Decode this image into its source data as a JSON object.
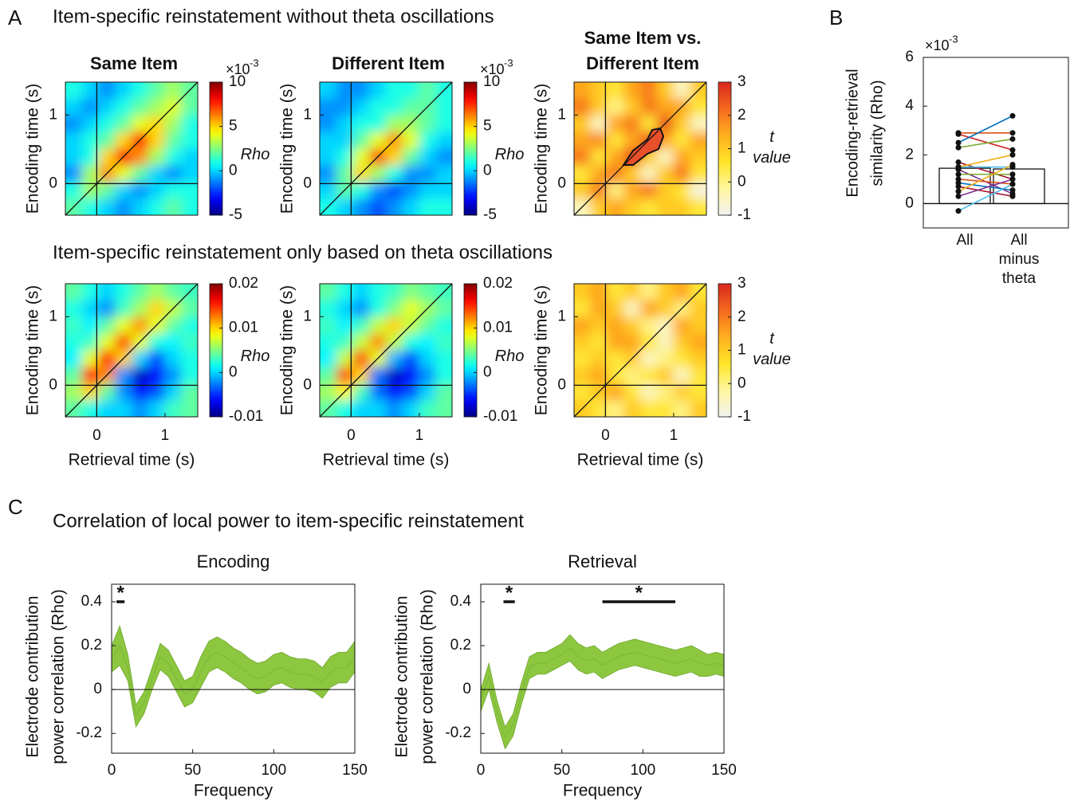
{
  "figure": {
    "panel_labels": [
      "A",
      "B",
      "C"
    ],
    "headings": [
      "Item-specific reinstatement without theta oscillations",
      "Item-specific reinstatement only based on theta oscillations",
      "Correlation of local power to item-specific reinstatement"
    ]
  },
  "chart_data": [
    {
      "type": "heatmap",
      "title": [
        "Same Item"
      ],
      "ylabel": "Encoding time (s)",
      "xlim": [
        -0.46,
        1.48
      ],
      "ylim": [
        -0.46,
        1.48
      ],
      "yticks": [
        0,
        1
      ],
      "colormap": "jet",
      "clim": [
        -5,
        10
      ],
      "cbar_ticks": [
        -5,
        0,
        5,
        10
      ],
      "cbar_label": [
        "Rho"
      ],
      "multiplier": {
        "base": "×10",
        "exp": "-3"
      },
      "z": [
        [
          1,
          0,
          -1,
          0,
          1,
          2,
          3,
          2
        ],
        [
          0,
          -1,
          0,
          1,
          2,
          3,
          4,
          2
        ],
        [
          -1,
          0,
          1,
          2,
          4,
          5,
          3,
          1
        ],
        [
          0,
          1,
          2,
          5,
          8,
          5,
          2,
          1
        ],
        [
          0,
          1,
          5,
          8,
          6,
          3,
          1,
          0
        ],
        [
          -1,
          3,
          6,
          4,
          2,
          0,
          -1,
          0
        ],
        [
          1,
          3,
          2,
          0,
          -1,
          0,
          1,
          1
        ],
        [
          2,
          1,
          0,
          -1,
          0,
          1,
          2,
          1
        ]
      ]
    },
    {
      "type": "heatmap",
      "title": [
        "Different Item"
      ],
      "ylabel": "Encoding time (s)",
      "xlim": [
        -0.46,
        1.48
      ],
      "ylim": [
        -0.46,
        1.48
      ],
      "yticks": [
        0,
        1
      ],
      "colormap": "jet",
      "clim": [
        -5,
        10
      ],
      "cbar_ticks": [
        -5,
        0,
        5,
        10
      ],
      "cbar_label": [
        "Rho"
      ],
      "multiplier": {
        "base": "×10",
        "exp": "-3"
      },
      "z": [
        [
          0,
          -1,
          -1,
          0,
          1,
          1,
          2,
          1
        ],
        [
          -1,
          -1,
          0,
          1,
          1,
          2,
          2,
          1
        ],
        [
          -1,
          0,
          1,
          1,
          3,
          3,
          2,
          1
        ],
        [
          0,
          0,
          2,
          4,
          6,
          4,
          1,
          0
        ],
        [
          0,
          1,
          4,
          7,
          5,
          2,
          0,
          -1
        ],
        [
          -1,
          2,
          5,
          3,
          1,
          -1,
          -1,
          0
        ],
        [
          0,
          2,
          1,
          -1,
          -2,
          -1,
          0,
          0
        ],
        [
          1,
          0,
          -1,
          -2,
          -1,
          0,
          1,
          1
        ]
      ]
    },
    {
      "type": "heatmap",
      "title": [
        "Same Item vs.",
        "Different Item"
      ],
      "ylabel": "Encoding time (s)",
      "xlim": [
        -0.46,
        1.48
      ],
      "ylim": [
        -0.46,
        1.48
      ],
      "yticks": [
        0,
        1
      ],
      "colormap": "tmap",
      "clim": [
        -1,
        3
      ],
      "cbar_ticks": [
        -1,
        0,
        1,
        2,
        3
      ],
      "cbar_label": [
        "t",
        "value"
      ],
      "z": [
        [
          1.5,
          1,
          0.5,
          1.5,
          2,
          1,
          -0.5,
          1
        ],
        [
          2,
          1,
          0,
          1,
          2,
          1.5,
          1.5,
          0.5
        ],
        [
          1,
          -0.5,
          1.5,
          2,
          0.5,
          2.5,
          1,
          -0.5
        ],
        [
          1.5,
          1.8,
          0.5,
          1.5,
          2.5,
          1.5,
          0.5,
          1.5
        ],
        [
          2,
          0.5,
          1.5,
          2.5,
          1,
          -0.5,
          1.5,
          1
        ],
        [
          0.5,
          1.5,
          2,
          1,
          -0.5,
          1,
          2,
          0.5
        ],
        [
          1,
          2,
          0,
          1.5,
          2,
          1,
          0.5,
          -0.8
        ],
        [
          -0.5,
          1,
          1.5,
          1,
          0.5,
          1,
          1,
          0.5
        ]
      ]
    },
    {
      "type": "heatmap",
      "ylabel": "Encoding time (s)",
      "xlabel": "Retrieval time (s)",
      "xlim": [
        -0.46,
        1.48
      ],
      "ylim": [
        -0.46,
        1.48
      ],
      "xticks": [
        0,
        1
      ],
      "yticks": [
        0,
        1
      ],
      "colormap": "jet",
      "clim": [
        -0.01,
        0.02
      ],
      "cbar_ticks": [
        -0.01,
        0,
        0.01,
        0.02
      ],
      "cbar_label": [
        "Rho"
      ],
      "z": [
        [
          0.004,
          0.002,
          0,
          0.002,
          0.004,
          0.006,
          0.004,
          0.003
        ],
        [
          0.002,
          0,
          -0.002,
          0.003,
          0.006,
          0.01,
          0.007,
          0.004
        ],
        [
          0.003,
          0.001,
          0.004,
          0.008,
          0.012,
          0.008,
          0.004,
          0.002
        ],
        [
          0.002,
          0.003,
          0.008,
          0.014,
          0.008,
          0.002,
          0.001,
          0.003
        ],
        [
          0.001,
          0.008,
          0.016,
          0.01,
          0,
          -0.004,
          0,
          0.002
        ],
        [
          0.004,
          0.016,
          0.012,
          -0.002,
          -0.008,
          -0.006,
          -0.002,
          0.002
        ],
        [
          0.006,
          0.01,
          0.004,
          -0.002,
          -0.006,
          -0.004,
          0,
          0.004
        ],
        [
          0.004,
          0.002,
          0,
          0,
          -0.002,
          0,
          0.003,
          0.004
        ]
      ]
    },
    {
      "type": "heatmap",
      "ylabel": "Encoding time (s)",
      "xlabel": "Retrieval time (s)",
      "xlim": [
        -0.46,
        1.48
      ],
      "ylim": [
        -0.46,
        1.48
      ],
      "xticks": [
        0,
        1
      ],
      "yticks": [
        0,
        1
      ],
      "colormap": "jet",
      "clim": [
        -0.01,
        0.02
      ],
      "cbar_ticks": [
        -0.01,
        0,
        0.01,
        0.02
      ],
      "cbar_label": [
        "Rho"
      ],
      "z": [
        [
          0.004,
          0.002,
          0,
          0.002,
          0.003,
          0.005,
          0.004,
          0.003
        ],
        [
          0.002,
          0,
          -0.002,
          0.002,
          0.005,
          0.008,
          0.006,
          0.004
        ],
        [
          0.003,
          0.001,
          0.003,
          0.007,
          0.01,
          0.007,
          0.004,
          0.002
        ],
        [
          0.002,
          0.003,
          0.007,
          0.012,
          0.007,
          0.002,
          0.001,
          0.003
        ],
        [
          0.001,
          0.007,
          0.014,
          0.008,
          -0.001,
          -0.004,
          0,
          0.002
        ],
        [
          0.004,
          0.014,
          0.01,
          -0.003,
          -0.008,
          -0.006,
          -0.002,
          0.002
        ],
        [
          0.006,
          0.009,
          0.003,
          -0.003,
          -0.006,
          -0.004,
          0,
          0.004
        ],
        [
          0.004,
          0.002,
          0,
          0,
          -0.002,
          0,
          0.003,
          0.004
        ]
      ]
    },
    {
      "type": "heatmap",
      "ylabel": "Encoding time (s)",
      "xlabel": "Retrieval time (s)",
      "xlim": [
        -0.46,
        1.48
      ],
      "ylim": [
        -0.46,
        1.48
      ],
      "xticks": [
        0,
        1
      ],
      "yticks": [
        0,
        1
      ],
      "colormap": "tmap",
      "clim": [
        -1,
        3
      ],
      "cbar_ticks": [
        -1,
        0,
        1,
        2,
        3
      ],
      "cbar_label": [
        "t",
        "value"
      ],
      "z": [
        [
          1,
          1.5,
          0.5,
          1,
          0,
          1,
          1.5,
          0.5
        ],
        [
          0.5,
          1.5,
          1,
          -0.5,
          1.5,
          1,
          0,
          1
        ],
        [
          1.5,
          1,
          1.5,
          1,
          0,
          -0.5,
          1.5,
          1
        ],
        [
          1,
          0.5,
          1.5,
          1.5,
          0.5,
          -0.5,
          1,
          1.5
        ],
        [
          0.5,
          1,
          0.5,
          1,
          -0.5,
          0,
          0.5,
          1
        ],
        [
          1,
          1.5,
          0.5,
          0,
          0.5,
          1,
          -0.5,
          0.5
        ],
        [
          0.5,
          1,
          1.5,
          0.5,
          -0.5,
          0,
          1,
          0.5
        ],
        [
          1,
          0.5,
          0,
          1,
          0.5,
          0.5,
          0,
          1
        ]
      ]
    },
    {
      "type": "bar",
      "ylabel": [
        "Encoding-retrieval",
        "similarity (Rho)"
      ],
      "multiplier": {
        "base": "×10",
        "exp": "-3"
      },
      "categories": [
        "All",
        "All minus theta"
      ],
      "values": [
        1.45,
        1.42
      ],
      "color": "#ffffff",
      "ylim": [
        -1,
        6
      ],
      "yticks": [
        0,
        2,
        4,
        6
      ],
      "series": [
        {
          "color": "#d95319",
          "values": [
            2.9,
            2.9
          ]
        },
        {
          "color": "#d62728",
          "values": [
            2.85,
            2.2
          ]
        },
        {
          "color": "#0072bd",
          "values": [
            2.5,
            3.6
          ]
        },
        {
          "color": "#77ac30",
          "values": [
            2.3,
            2.65
          ]
        },
        {
          "color": "#a2142f",
          "values": [
            1.7,
            1.0
          ]
        },
        {
          "color": "#4dbeee",
          "values": [
            1.5,
            1.5
          ]
        },
        {
          "color": "#edb120",
          "values": [
            1.5,
            2.0
          ]
        },
        {
          "color": "#7e2f8e",
          "values": [
            1.4,
            0.4
          ]
        },
        {
          "color": "#77ac30",
          "values": [
            1.2,
            1.2
          ]
        },
        {
          "color": "#d95319",
          "values": [
            1.0,
            0.8
          ]
        },
        {
          "color": "#0072bd",
          "values": [
            0.85,
            0.55
          ]
        },
        {
          "color": "#a2142f",
          "values": [
            0.7,
            0.3
          ]
        },
        {
          "color": "#edb120",
          "values": [
            0.5,
            1.6
          ]
        },
        {
          "color": "#7e2f8e",
          "values": [
            0.3,
            1.0
          ]
        },
        {
          "color": "#4dbeee",
          "values": [
            -0.3,
            0.8
          ]
        }
      ]
    },
    {
      "type": "band",
      "title": "Encoding",
      "xlabel": "Frequency",
      "ylabel": [
        "Electrode contribution",
        "power correlation (Rho)"
      ],
      "color": "#8dc63f",
      "x": [
        0,
        5,
        10,
        15,
        20,
        25,
        30,
        35,
        40,
        45,
        50,
        55,
        60,
        65,
        70,
        75,
        80,
        85,
        90,
        95,
        100,
        105,
        110,
        115,
        120,
        125,
        130,
        135,
        140,
        145,
        150
      ],
      "values": [
        0.14,
        0.2,
        0.1,
        -0.12,
        -0.06,
        0.05,
        0.15,
        0.12,
        0.05,
        -0.02,
        0.0,
        0.08,
        0.15,
        0.17,
        0.15,
        0.12,
        0.1,
        0.07,
        0.05,
        0.06,
        0.09,
        0.1,
        0.08,
        0.07,
        0.07,
        0.06,
        0.03,
        0.08,
        0.1,
        0.1,
        0.15
      ],
      "errors": [
        0.06,
        0.09,
        0.06,
        0.05,
        0.05,
        0.05,
        0.06,
        0.06,
        0.06,
        0.06,
        0.06,
        0.07,
        0.07,
        0.07,
        0.07,
        0.07,
        0.07,
        0.07,
        0.07,
        0.07,
        0.07,
        0.07,
        0.07,
        0.07,
        0.07,
        0.07,
        0.07,
        0.07,
        0.07,
        0.07,
        0.07
      ],
      "xlim": [
        0,
        150
      ],
      "ylim": [
        -0.29,
        0.48
      ],
      "xticks": [
        0,
        50,
        100,
        150
      ],
      "yticks": [
        -0.2,
        0,
        0.2,
        0.4
      ],
      "significance": [
        {
          "range": [
            3,
            8
          ],
          "label": "*"
        }
      ]
    },
    {
      "type": "band",
      "title": "Retrieval",
      "xlabel": "Frequency",
      "ylabel": [
        "Electrode contribution",
        "power correlation (Rho)"
      ],
      "color": "#8dc63f",
      "x": [
        0,
        5,
        10,
        15,
        20,
        25,
        30,
        35,
        40,
        45,
        50,
        55,
        60,
        65,
        70,
        75,
        80,
        85,
        90,
        95,
        100,
        105,
        110,
        115,
        120,
        125,
        130,
        135,
        140,
        145,
        150
      ],
      "values": [
        -0.05,
        0.06,
        -0.1,
        -0.22,
        -0.16,
        -0.02,
        0.1,
        0.12,
        0.12,
        0.14,
        0.16,
        0.19,
        0.15,
        0.13,
        0.14,
        0.11,
        0.13,
        0.15,
        0.16,
        0.17,
        0.16,
        0.15,
        0.14,
        0.13,
        0.12,
        0.13,
        0.14,
        0.12,
        0.11,
        0.12,
        0.11
      ],
      "errors": [
        0.05,
        0.06,
        0.05,
        0.05,
        0.05,
        0.05,
        0.05,
        0.05,
        0.05,
        0.05,
        0.05,
        0.06,
        0.06,
        0.06,
        0.06,
        0.06,
        0.06,
        0.06,
        0.06,
        0.06,
        0.06,
        0.06,
        0.06,
        0.06,
        0.06,
        0.06,
        0.06,
        0.06,
        0.05,
        0.05,
        0.05
      ],
      "xlim": [
        0,
        150
      ],
      "ylim": [
        -0.29,
        0.48
      ],
      "xticks": [
        0,
        50,
        100,
        150
      ],
      "yticks": [
        -0.2,
        0,
        0.2,
        0.4
      ],
      "significance": [
        {
          "range": [
            14,
            21
          ],
          "label": "*"
        },
        {
          "range": [
            75,
            120
          ],
          "label": "*"
        }
      ]
    }
  ]
}
